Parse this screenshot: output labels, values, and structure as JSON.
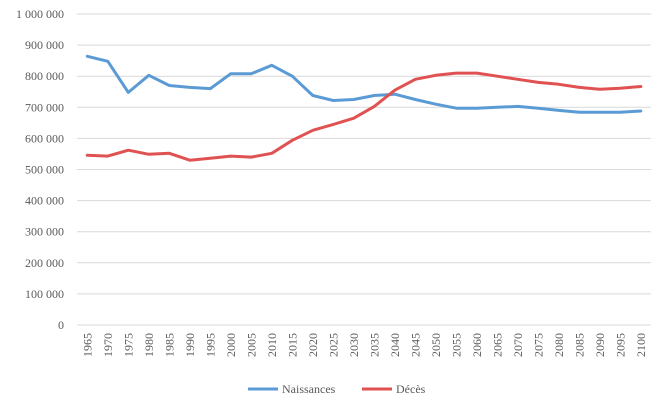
{
  "chart_data": {
    "type": "line",
    "title": "",
    "xlabel": "",
    "ylabel": "",
    "ylim": [
      0,
      1000000
    ],
    "y_ticks": [
      0,
      100000,
      200000,
      300000,
      400000,
      500000,
      600000,
      700000,
      800000,
      900000,
      1000000
    ],
    "y_tick_labels": [
      "0",
      "100 000",
      "200 000",
      "300 000",
      "400 000",
      "500 000",
      "600 000",
      "700 000",
      "800 000",
      "900 000",
      "1 000 000"
    ],
    "grid": true,
    "legend_position": "bottom",
    "categories": [
      "1965",
      "1970",
      "1975",
      "1980",
      "1985",
      "1990",
      "1995",
      "2000",
      "2005",
      "2010",
      "2015",
      "2020",
      "2025",
      "2030",
      "2035",
      "2040",
      "2045",
      "2050",
      "2055",
      "2060",
      "2065",
      "2070",
      "2075",
      "2080",
      "2085",
      "2090",
      "2095",
      "2100"
    ],
    "series": [
      {
        "name": "Naissances",
        "color": "#5B9BD5",
        "values": [
          864000,
          848000,
          748000,
          803000,
          770000,
          764000,
          760000,
          808000,
          808000,
          835000,
          800000,
          738000,
          722000,
          725000,
          738000,
          742000,
          725000,
          710000,
          697000,
          697000,
          700000,
          703000,
          697000,
          690000,
          684000,
          684000,
          684000,
          688000
        ]
      },
      {
        "name": "Décès",
        "color": "#E05252",
        "values": [
          546000,
          543000,
          562000,
          549000,
          552000,
          530000,
          536000,
          543000,
          540000,
          552000,
          594000,
          626000,
          645000,
          665000,
          703000,
          755000,
          790000,
          803000,
          810000,
          810000,
          800000,
          790000,
          780000,
          774000,
          764000,
          758000,
          761000,
          767000
        ]
      }
    ]
  }
}
